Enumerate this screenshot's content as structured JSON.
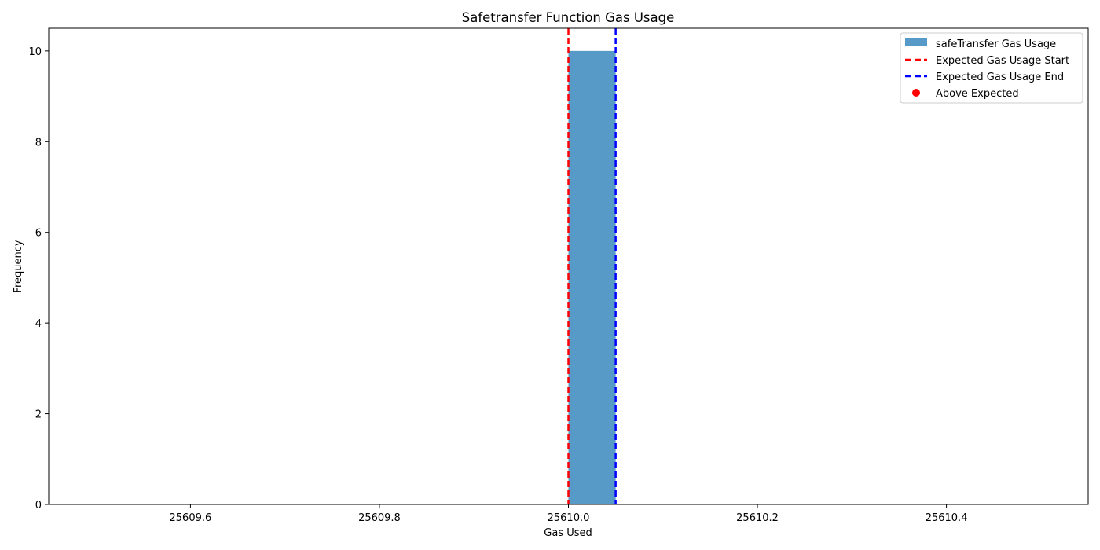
{
  "chart_data": {
    "type": "bar",
    "title": "Safetransfer Function Gas Usage",
    "xlabel": "Gas Used",
    "ylabel": "Frequency",
    "xlim": [
      25609.45,
      25610.55
    ],
    "ylim": [
      0,
      10.5
    ],
    "x_ticks": [
      25609.6,
      25609.8,
      25610.0,
      25610.2,
      25610.4
    ],
    "x_tick_labels": [
      "25609.6",
      "25609.8",
      "25610.0",
      "25610.2",
      "25610.4"
    ],
    "y_ticks": [
      0,
      2,
      4,
      6,
      8,
      10
    ],
    "y_tick_labels": [
      "0",
      "2",
      "4",
      "6",
      "8",
      "10"
    ],
    "grid": false,
    "legend_position": "top-right",
    "histogram": {
      "name": "safeTransfer Gas Usage",
      "color": "#5799c7",
      "bins": [
        {
          "x_start": 25610.0,
          "x_end": 25610.05,
          "value": 10
        }
      ]
    },
    "vlines": [
      {
        "name": "Expected Gas Usage Start",
        "x": 25610.0,
        "color": "#ff0000",
        "style": "dashed"
      },
      {
        "name": "Expected Gas Usage End",
        "x": 25610.05,
        "color": "#0000ff",
        "style": "dashed"
      }
    ],
    "points": {
      "name": "Above Expected",
      "color": "#ff0000",
      "values": []
    }
  }
}
